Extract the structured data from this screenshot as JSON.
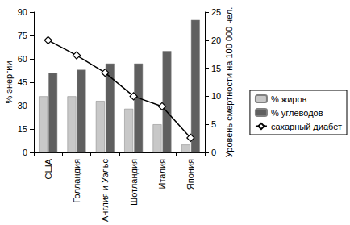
{
  "chart_data": {
    "type": "bar",
    "categories": [
      "США",
      "Голландия",
      "Англия и Уэльс",
      "Шотландия",
      "Италия",
      "Япония"
    ],
    "y_label": "% энергии",
    "y2_label": "Уровень смертности на 100 000 чел.",
    "ylim": [
      0,
      90
    ],
    "yticks": [
      0,
      15,
      30,
      45,
      60,
      75,
      90
    ],
    "y2lim": [
      0,
      25
    ],
    "y2ticks": [
      0,
      5,
      10,
      15,
      20,
      25
    ],
    "grid": false,
    "legend": "right",
    "series": [
      {
        "name": "% жиров",
        "type": "bar",
        "color": "#c8c8c8",
        "values": [
          36,
          36,
          33,
          28,
          18,
          5
        ]
      },
      {
        "name": "% углеводов",
        "type": "bar",
        "color": "#5f5f5f",
        "values": [
          51,
          53,
          57,
          57,
          65,
          85
        ]
      },
      {
        "name": "сахарный диабет",
        "type": "line",
        "axis": "y2",
        "color": "#000000",
        "marker": "diamond",
        "line_style": "solid",
        "values": [
          20,
          17.3,
          14.2,
          10,
          8.2,
          2.6
        ]
      }
    ]
  }
}
